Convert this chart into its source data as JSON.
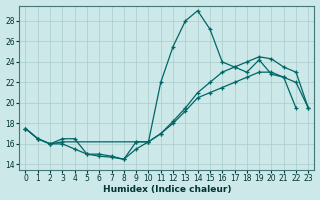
{
  "xlabel": "Humidex (Indice chaleur)",
  "bg_color": "#cce8e8",
  "grid_color": "#aacccc",
  "line_color": "#006666",
  "xlim": [
    -0.5,
    23.5
  ],
  "ylim": [
    13.5,
    29.5
  ],
  "yticks": [
    14,
    16,
    18,
    20,
    22,
    24,
    26,
    28
  ],
  "xticks": [
    0,
    1,
    2,
    3,
    4,
    5,
    6,
    7,
    8,
    9,
    10,
    11,
    12,
    13,
    14,
    15,
    16,
    17,
    18,
    19,
    20,
    21,
    22,
    23
  ],
  "curve1_x": [
    0,
    1,
    2,
    3,
    4,
    5,
    6,
    7,
    8,
    9,
    10,
    11,
    12,
    13,
    14,
    15,
    16,
    17,
    18,
    19,
    20,
    21,
    22
  ],
  "curve1_y": [
    17.5,
    16.5,
    16.0,
    16.5,
    16.5,
    15.0,
    14.8,
    14.7,
    14.5,
    15.5,
    16.2,
    22.0,
    25.5,
    28.0,
    29.0,
    27.2,
    24.0,
    23.5,
    23.0,
    24.2,
    22.8,
    22.5,
    19.5
  ],
  "curve2_x": [
    0,
    1,
    2,
    3,
    4,
    5,
    6,
    7,
    8,
    9,
    10,
    11,
    12,
    13,
    14,
    15,
    16,
    17,
    18,
    19,
    20,
    21,
    22,
    23
  ],
  "curve2_y": [
    17.5,
    16.5,
    16.0,
    16.0,
    15.5,
    15.0,
    15.0,
    14.8,
    14.5,
    16.2,
    16.2,
    17.0,
    18.0,
    19.2,
    20.5,
    21.0,
    21.5,
    22.0,
    22.5,
    23.0,
    23.0,
    22.5,
    22.0,
    19.5
  ],
  "curve3_x": [
    0,
    1,
    2,
    3,
    9,
    10,
    11,
    12,
    13,
    14,
    15,
    16,
    17,
    18,
    19,
    20,
    21,
    22,
    23
  ],
  "curve3_y": [
    17.5,
    16.5,
    16.0,
    16.2,
    16.2,
    16.2,
    17.0,
    18.2,
    19.5,
    21.0,
    22.0,
    23.0,
    23.5,
    24.0,
    24.5,
    24.3,
    23.5,
    23.0,
    19.5
  ]
}
